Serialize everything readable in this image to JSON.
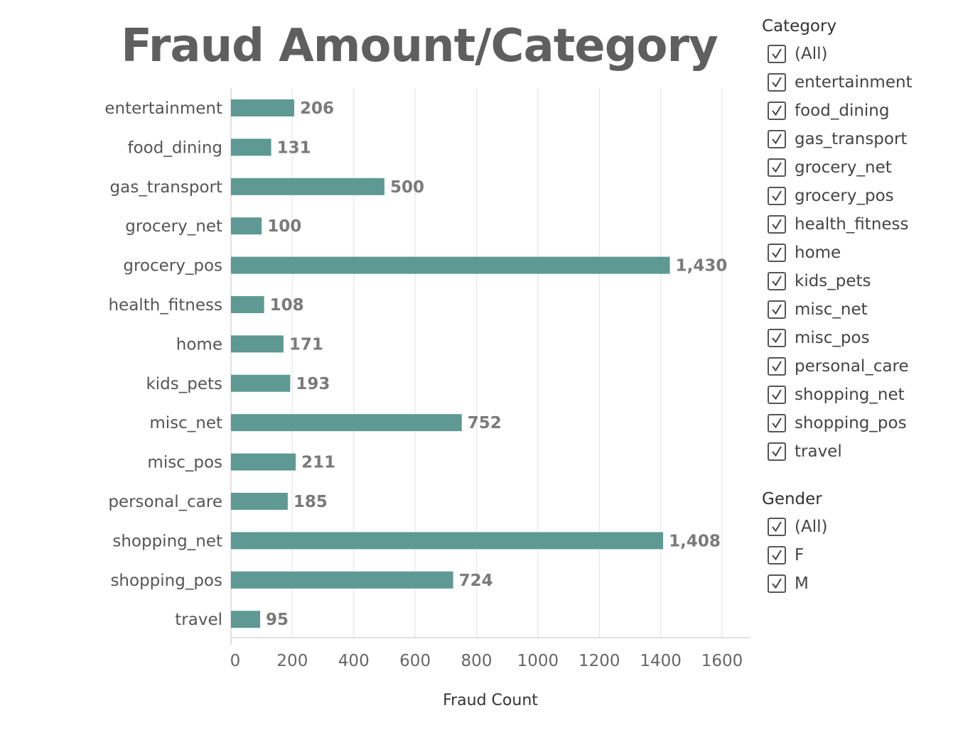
{
  "chart_data": {
    "type": "bar",
    "orientation": "horizontal",
    "title": "Fraud Amount/Category",
    "xlabel": "Fraud Count",
    "ylabel": "",
    "categories": [
      "entertainment",
      "food_dining",
      "gas_transport",
      "grocery_net",
      "grocery_pos",
      "health_fitness",
      "home",
      "kids_pets",
      "misc_net",
      "misc_pos",
      "personal_care",
      "shopping_net",
      "shopping_pos",
      "travel"
    ],
    "values": [
      206,
      131,
      500,
      100,
      1430,
      108,
      171,
      193,
      752,
      211,
      185,
      1408,
      724,
      95
    ],
    "data_labels": [
      "206",
      "131",
      "500",
      "100",
      "1,430",
      "108",
      "171",
      "193",
      "752",
      "211",
      "185",
      "1,408",
      "724",
      "95"
    ],
    "xlim": [
      0,
      1700
    ],
    "xticks": [
      "0",
      "200",
      "400",
      "600",
      "800",
      "1000",
      "1200",
      "1400",
      "1600"
    ],
    "grid": "vertical",
    "bar_color": "#5e9993"
  },
  "filters": {
    "category": {
      "title": "Category",
      "items": [
        "(All)",
        "entertainment",
        "food_dining",
        "gas_transport",
        "grocery_net",
        "grocery_pos",
        "health_fitness",
        "home",
        "kids_pets",
        "misc_net",
        "misc_pos",
        "personal_care",
        "shopping_net",
        "shopping_pos",
        "travel"
      ]
    },
    "gender": {
      "title": "Gender",
      "items": [
        "(All)",
        "F",
        "M"
      ]
    }
  }
}
